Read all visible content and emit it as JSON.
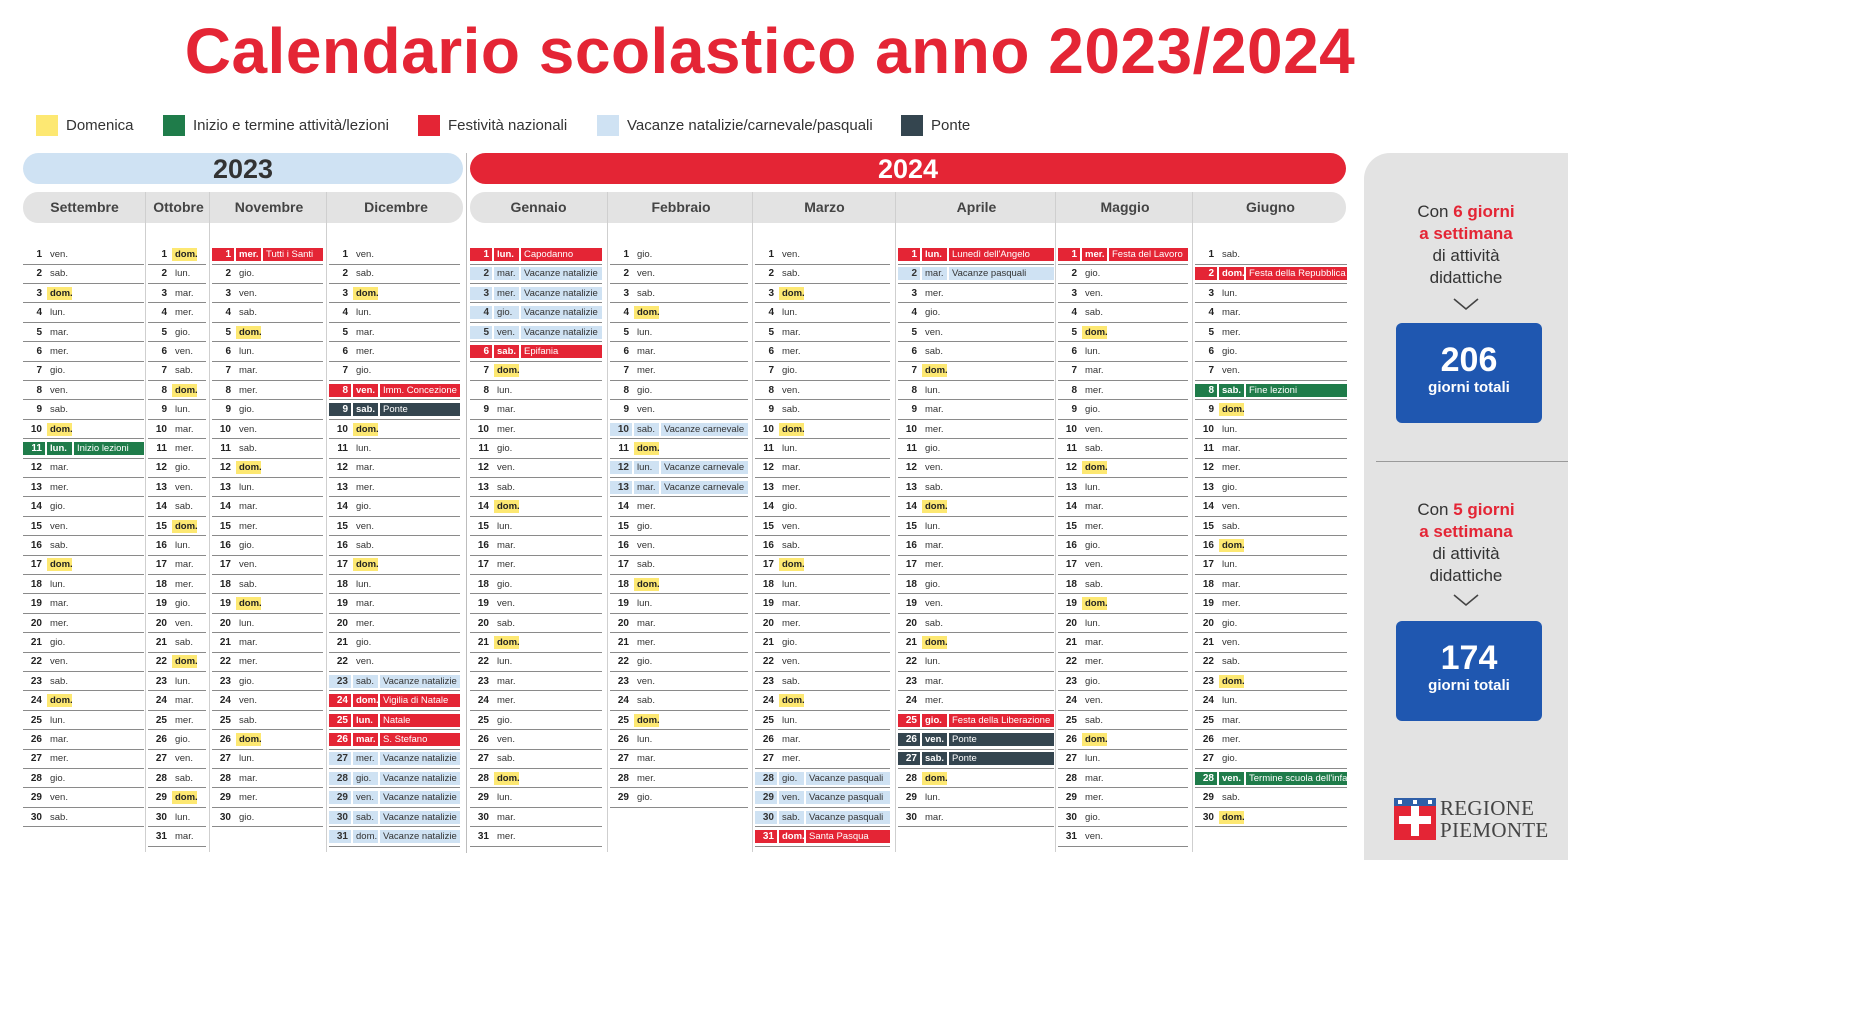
{
  "title": "Calendario scolastico anno 2023/2024",
  "legend": [
    {
      "label": "Domenica",
      "color": "#fde872",
      "icon": "square"
    },
    {
      "label": "Inizio e termine attività/lezioni",
      "color": "#1f7c4a",
      "icon": "square"
    },
    {
      "label": "Festività nazionali",
      "color": "#e42535",
      "icon": "square"
    },
    {
      "label": "Vacanze natalizie/carnevale/pasquali",
      "color": "#cfe2f3",
      "icon": "square"
    },
    {
      "label": "Ponte",
      "color": "#34454f",
      "icon": "square"
    }
  ],
  "years": [
    {
      "label": "2023",
      "color": "#cfe2f3",
      "text_color": "#333333"
    },
    {
      "label": "2024",
      "color": "#e42535",
      "text_color": "#ffffff"
    }
  ],
  "months": [
    {
      "name": "Settembre",
      "start": 5,
      "days": 30,
      "events": {
        "11": [
          "ini",
          "Inizio lezioni"
        ]
      }
    },
    {
      "name": "Ottobre",
      "start": 0,
      "days": 31,
      "events": {}
    },
    {
      "name": "Novembre",
      "start": 3,
      "days": 30,
      "events": {
        "1": [
          "fes",
          "Tutti i Santi"
        ]
      }
    },
    {
      "name": "Dicembre",
      "start": 5,
      "days": 31,
      "events": {
        "8": [
          "fes",
          "Imm. Concezione"
        ],
        "9": [
          "pon",
          "Ponte"
        ],
        "23": [
          "vac",
          "Vacanze natalizie"
        ],
        "24": [
          "fes",
          "Vigilia di Natale"
        ],
        "25": [
          "fes",
          "Natale"
        ],
        "26": [
          "fes",
          "S. Stefano"
        ],
        "27": [
          "vac",
          "Vacanze natalizie"
        ],
        "28": [
          "vac",
          "Vacanze natalizie"
        ],
        "29": [
          "vac",
          "Vacanze natalizie"
        ],
        "30": [
          "vac",
          "Vacanze natalizie"
        ],
        "31": [
          "vac",
          "Vacanze natalizie"
        ]
      }
    },
    {
      "name": "Gennaio",
      "start": 1,
      "days": 31,
      "events": {
        "1": [
          "fes",
          "Capodanno"
        ],
        "2": [
          "vac",
          "Vacanze natalizie"
        ],
        "3": [
          "vac",
          "Vacanze natalizie"
        ],
        "4": [
          "vac",
          "Vacanze natalizie"
        ],
        "5": [
          "vac",
          "Vacanze natalizie"
        ],
        "6": [
          "fes",
          "Epifania"
        ]
      }
    },
    {
      "name": "Febbraio",
      "start": 4,
      "days": 29,
      "events": {
        "10": [
          "vac",
          "Vacanze carnevale"
        ],
        "12": [
          "vac",
          "Vacanze carnevale"
        ],
        "13": [
          "vac",
          "Vacanze carnevale"
        ]
      }
    },
    {
      "name": "Marzo",
      "start": 5,
      "days": 31,
      "events": {
        "28": [
          "vac",
          "Vacanze pasquali"
        ],
        "29": [
          "vac",
          "Vacanze pasquali"
        ],
        "30": [
          "vac",
          "Vacanze pasquali"
        ],
        "31": [
          "fes",
          "Santa Pasqua"
        ]
      }
    },
    {
      "name": "Aprile",
      "start": 1,
      "days": 30,
      "events": {
        "1": [
          "fes",
          "Lunedì dell'Angelo"
        ],
        "2": [
          "vac",
          "Vacanze pasquali"
        ],
        "25": [
          "fes",
          "Festa della Liberazione"
        ],
        "26": [
          "pon",
          "Ponte"
        ],
        "27": [
          "pon",
          "Ponte"
        ]
      }
    },
    {
      "name": "Maggio",
      "start": 3,
      "days": 31,
      "events": {
        "1": [
          "fes",
          "Festa del Lavoro"
        ]
      }
    },
    {
      "name": "Giugno",
      "start": 6,
      "days": 30,
      "events": {
        "2": [
          "fes",
          "Festa della Repubblica"
        ],
        "8": [
          "ini",
          "Fine lezioni"
        ],
        "28": [
          "ini",
          "Termine scuola dell'infanzia"
        ]
      }
    }
  ],
  "weekdays": [
    "dom.",
    "lun.",
    "mar.",
    "mer.",
    "gio.",
    "ven.",
    "sab."
  ],
  "sidebar": {
    "block1": {
      "line1_a": "Con ",
      "line1_b": "6 giorni",
      "line2": "a settimana",
      "line3": "di attività",
      "line4": "didattiche",
      "total": "206",
      "total_label": "giorni totali"
    },
    "block2": {
      "line1_a": "Con ",
      "line1_b": "5 giorni",
      "line2": "a settimana",
      "line3": "di attività",
      "line4": "didattiche",
      "total": "174",
      "total_label": "giorni totali"
    }
  },
  "logo": {
    "line1": "REGIONE",
    "line2": "PIEMONTE"
  }
}
